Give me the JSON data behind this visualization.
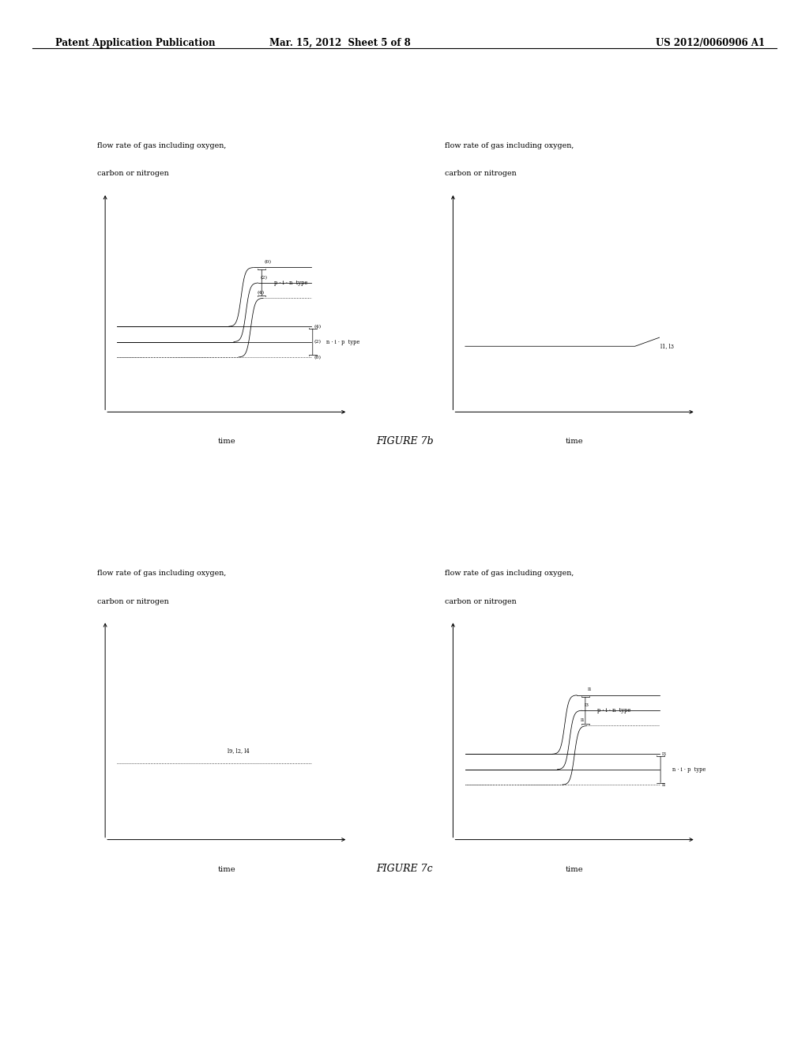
{
  "header_left": "Patent Application Publication",
  "header_mid": "Mar. 15, 2012  Sheet 5 of 8",
  "header_right": "US 2012/0060906 A1",
  "ylab1": "flow rate of gas including oxygen,",
  "ylab2": "carbon or nitrogen",
  "ylab1_7c_left": "flow rate of gas including oxygen,",
  "ylab2_7c_left": "carbon or nitrogen",
  "xlab": "time",
  "fig7b_caption": "FIGURE 7b",
  "fig7c_caption": "FIGURE 7c",
  "bg_color": "#ffffff"
}
